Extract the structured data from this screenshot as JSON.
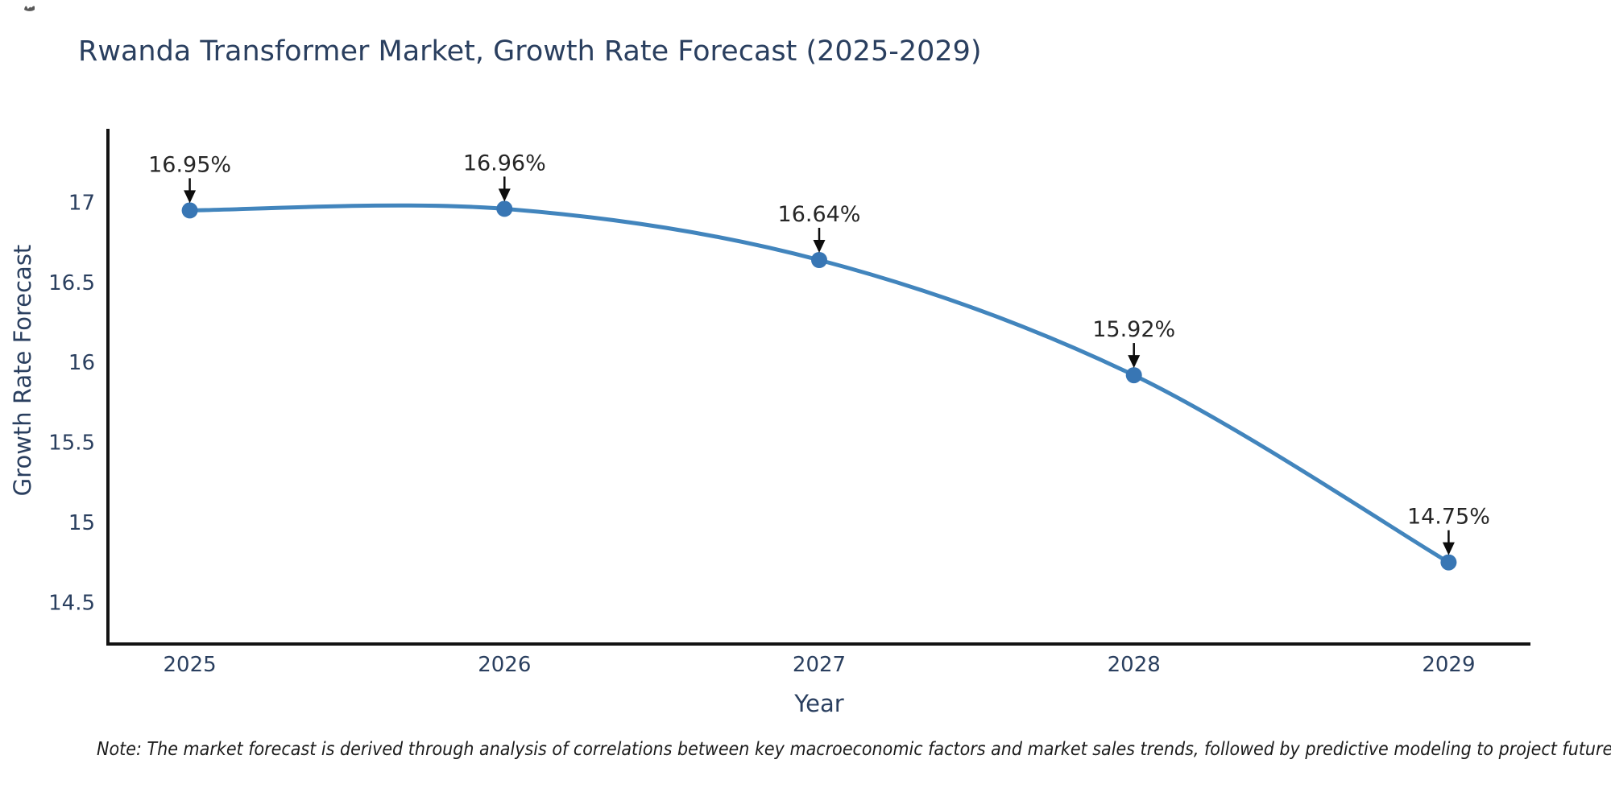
{
  "title": "Rwanda Transformer Market, Growth Rate Forecast (2025-2029)",
  "footnote": "Note: The market forecast is derived through analysis of correlations between key macroeconomic factors and market sales trends, followed by predictive modeling to project future sal",
  "chart_data": {
    "type": "line",
    "title": "Rwanda Transformer Market, Growth Rate Forecast (2025-2029)",
    "x": [
      2025,
      2026,
      2027,
      2028,
      2029
    ],
    "values": [
      16.95,
      16.96,
      16.64,
      15.92,
      14.75
    ],
    "point_labels": [
      "16.95%",
      "16.96%",
      "16.64%",
      "15.92%",
      "14.75%"
    ],
    "xlabel": "Year",
    "ylabel": "Growth Rate Forecast",
    "xticks": [
      "2025",
      "2026",
      "2027",
      "2028",
      "2029"
    ],
    "yticks": [
      14.5,
      15,
      15.5,
      16,
      16.5,
      17
    ],
    "xlim": [
      2024.74,
      2029.26
    ],
    "ylim": [
      14.24,
      17.46
    ],
    "grid": false,
    "legend_position": "none",
    "line_shape": "spline",
    "annotation_style": "value labels above points with downward black arrows",
    "colors": {
      "line": "#4285bd",
      "marker": "#3876b4",
      "axis": "#131313",
      "tick_text": "#2a3f5f",
      "axis_title_text": "#2a3f5f",
      "point_label_text": "#262626",
      "arrow": "#0d0d0d"
    }
  }
}
